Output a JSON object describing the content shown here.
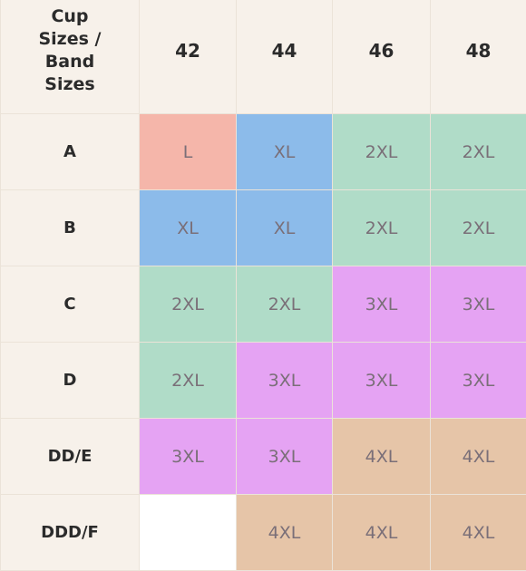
{
  "corner_header_lines": [
    "Cup",
    "Sizes /",
    "Band",
    "Sizes"
  ],
  "band_sizes": [
    "42",
    "44",
    "46",
    "48"
  ],
  "colors": {
    "L": "#f5b6aa",
    "XL": "#8cbbea",
    "2XL": "#b0dcc8",
    "3XL": "#e5a3f3",
    "4XL": "#e6c5a8",
    "empty": "#ffffff",
    "header_bg": "#f7f1ea"
  },
  "rows": [
    {
      "cup": "A",
      "cells": [
        "L",
        "XL",
        "2XL",
        "2XL"
      ]
    },
    {
      "cup": "B",
      "cells": [
        "XL",
        "XL",
        "2XL",
        "2XL"
      ]
    },
    {
      "cup": "C",
      "cells": [
        "2XL",
        "2XL",
        "3XL",
        "3XL"
      ]
    },
    {
      "cup": "D",
      "cells": [
        "2XL",
        "3XL",
        "3XL",
        "3XL"
      ]
    },
    {
      "cup": "DD/E",
      "cells": [
        "3XL",
        "3XL",
        "4XL",
        "4XL"
      ]
    },
    {
      "cup": "DDD/F",
      "cells": [
        "",
        "4XL",
        "4XL",
        "4XL"
      ]
    }
  ]
}
